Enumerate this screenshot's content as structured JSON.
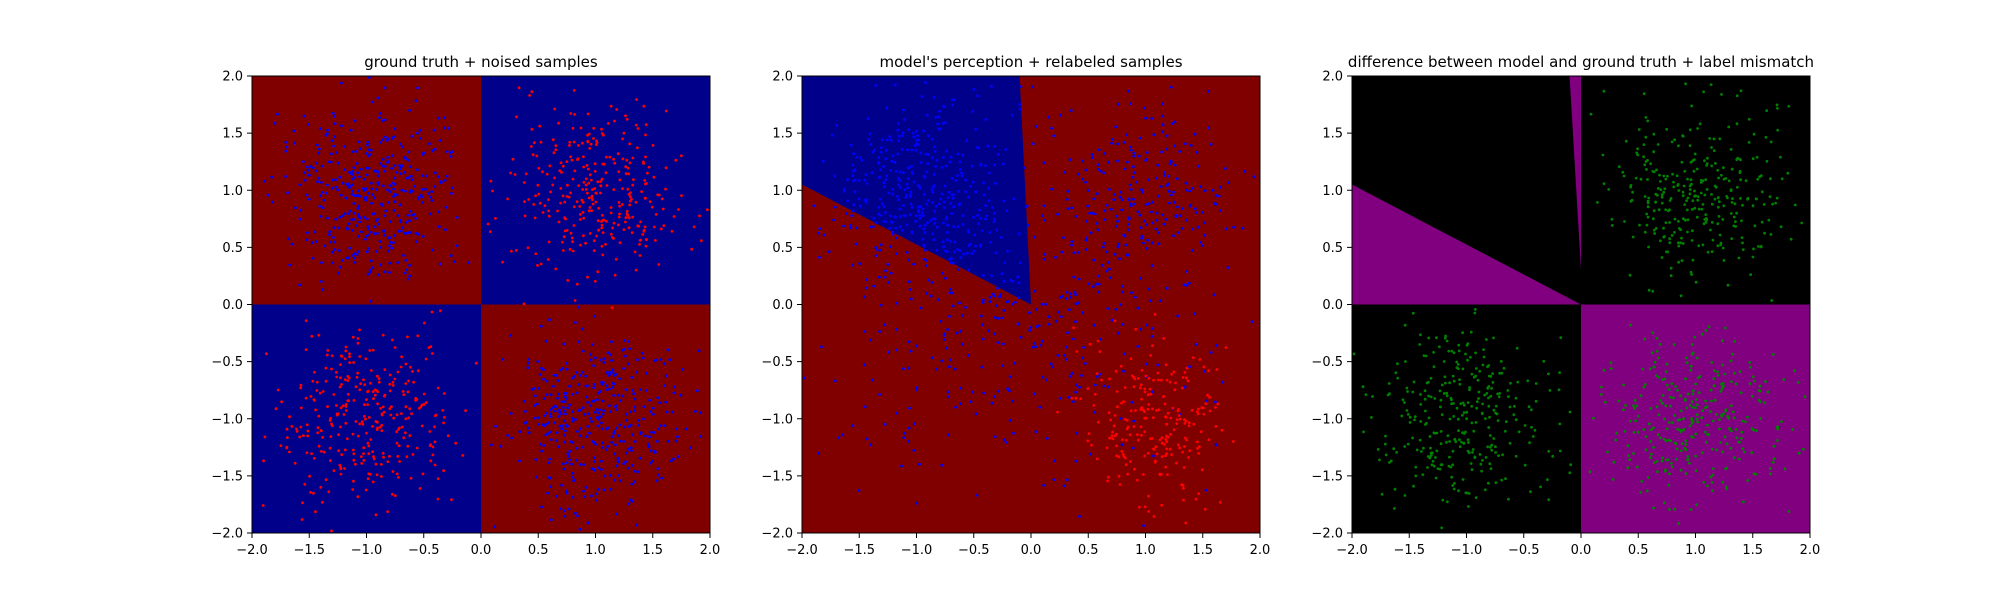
{
  "colors": {
    "red": "#800000",
    "blue": "#00008b",
    "purple": "#800080",
    "black": "#000000",
    "point_red": "#ff0000",
    "point_blue": "#0000ff",
    "point_green": "#008000"
  },
  "chart_data": [
    {
      "type": "scatter",
      "title": "ground truth + noised samples",
      "xlabel": "",
      "ylabel": "",
      "xlim": [
        -2.0,
        2.0
      ],
      "ylim": [
        -2.0,
        2.0
      ],
      "xticks": [
        "−2.0",
        "−1.5",
        "−1.0",
        "−0.5",
        "0.0",
        "0.5",
        "1.0",
        "1.5",
        "2.0"
      ],
      "yticks": [
        "−2.0",
        "−1.5",
        "−1.0",
        "−0.5",
        "0.0",
        "0.5",
        "1.0",
        "1.5",
        "2.0"
      ],
      "grid": false,
      "background_regions": [
        {
          "polygon": [
            [
              -2,
              0
            ],
            [
              0,
              0
            ],
            [
              0,
              2
            ],
            [
              -2,
              2
            ]
          ],
          "color": "red"
        },
        {
          "polygon": [
            [
              0,
              0
            ],
            [
              2,
              0
            ],
            [
              2,
              2
            ],
            [
              0,
              2
            ]
          ],
          "color": "blue"
        },
        {
          "polygon": [
            [
              -2,
              -2
            ],
            [
              0,
              -2
            ],
            [
              0,
              0
            ],
            [
              -2,
              0
            ]
          ],
          "color": "blue"
        },
        {
          "polygon": [
            [
              0,
              -2
            ],
            [
              2,
              -2
            ],
            [
              2,
              0
            ],
            [
              0,
              0
            ]
          ],
          "color": "red"
        }
      ],
      "point_groups": [
        {
          "color": "point_blue",
          "count": 400,
          "rule": "x*y > 0 ? 0 : 1",
          "x_range": [
            -2,
            0
          ],
          "y_range": [
            0,
            2
          ],
          "spread": 0.55
        },
        {
          "color": "point_red",
          "count": 320,
          "rule": "x*y > 0 ? 0 : 1",
          "x_range": [
            0,
            2
          ],
          "y_range": [
            0,
            2
          ],
          "spread": 0.55
        },
        {
          "color": "point_red",
          "count": 320,
          "rule": "x*y > 0 ? 0 : 1",
          "x_range": [
            -2,
            0
          ],
          "y_range": [
            -2,
            0
          ],
          "spread": 0.55
        },
        {
          "color": "point_blue",
          "count": 400,
          "rule": "x*y > 0 ? 0 : 1",
          "x_range": [
            0,
            2
          ],
          "y_range": [
            -2,
            0
          ],
          "spread": 0.55
        }
      ]
    },
    {
      "type": "scatter",
      "title": "model's perception + relabeled samples",
      "xlabel": "",
      "ylabel": "",
      "xlim": [
        -2.0,
        2.0
      ],
      "ylim": [
        -2.0,
        2.0
      ],
      "xticks": [
        "−2.0",
        "−1.5",
        "−1.0",
        "−0.5",
        "0.0",
        "0.5",
        "1.0",
        "1.5",
        "2.0"
      ],
      "yticks": [
        "−2.0",
        "−1.5",
        "−1.0",
        "−0.5",
        "0.0",
        "0.5",
        "1.0",
        "1.5",
        "2.0"
      ],
      "grid": false,
      "background_regions": [
        {
          "polygon": [
            [
              -2,
              -2
            ],
            [
              2,
              -2
            ],
            [
              2,
              2
            ],
            [
              -2,
              2
            ]
          ],
          "color": "red"
        },
        {
          "polygon": [
            [
              -2,
              1.05
            ],
            [
              0,
              0
            ],
            [
              -0.1,
              2
            ],
            [
              -2,
              2
            ]
          ],
          "color": "blue"
        }
      ],
      "point_groups": [
        {
          "color": "point_blue",
          "count": 350,
          "x_range": [
            -2,
            0
          ],
          "y_range": [
            0,
            2
          ],
          "spread": 0.55
        },
        {
          "color": "point_blue",
          "count": 400,
          "x_range": [
            -2,
            2
          ],
          "y_range": [
            -2,
            2
          ],
          "spread": 0.55
        },
        {
          "color": "point_blue",
          "count": 180,
          "x_range": [
            0,
            2
          ],
          "y_range": [
            0,
            2
          ],
          "spread": 0.5
        },
        {
          "color": "point_red",
          "count": 230,
          "x_range": [
            0.2,
            2
          ],
          "y_range": [
            -2,
            0
          ],
          "spread": 0.45
        }
      ]
    },
    {
      "type": "scatter",
      "title": "difference between model and ground truth + label mismatch",
      "xlabel": "",
      "ylabel": "",
      "xlim": [
        -2.0,
        2.0
      ],
      "ylim": [
        -2.0,
        2.0
      ],
      "xticks": [
        "−2.0",
        "−1.5",
        "−1.0",
        "−0.5",
        "0.0",
        "0.5",
        "1.0",
        "1.5",
        "2.0"
      ],
      "yticks": [
        "−2.0",
        "−1.5",
        "−1.0",
        "−0.5",
        "0.0",
        "0.5",
        "1.0",
        "1.5",
        "2.0"
      ],
      "grid": false,
      "background_regions": [
        {
          "polygon": [
            [
              -2,
              -2
            ],
            [
              2,
              -2
            ],
            [
              2,
              2
            ],
            [
              -2,
              2
            ]
          ],
          "color": "black"
        },
        {
          "polygon": [
            [
              -2,
              0
            ],
            [
              0,
              0
            ],
            [
              -2,
              1.05
            ]
          ],
          "color": "purple"
        },
        {
          "polygon": [
            [
              -0.1,
              2
            ],
            [
              0,
              2
            ],
            [
              0,
              0.3
            ]
          ],
          "color": "purple"
        },
        {
          "polygon": [
            [
              0,
              -2
            ],
            [
              2,
              -2
            ],
            [
              2,
              0
            ],
            [
              0,
              0
            ]
          ],
          "color": "purple"
        }
      ],
      "point_groups": [
        {
          "color": "point_green",
          "count": 320,
          "x_range": [
            0,
            2
          ],
          "y_range": [
            0,
            2
          ],
          "spread": 0.55
        },
        {
          "color": "point_green",
          "count": 320,
          "x_range": [
            -2,
            0
          ],
          "y_range": [
            -2,
            0
          ],
          "spread": 0.55
        },
        {
          "color": "point_green",
          "count": 320,
          "x_range": [
            0,
            2
          ],
          "y_range": [
            -2,
            0
          ],
          "spread": 0.55
        }
      ]
    }
  ]
}
